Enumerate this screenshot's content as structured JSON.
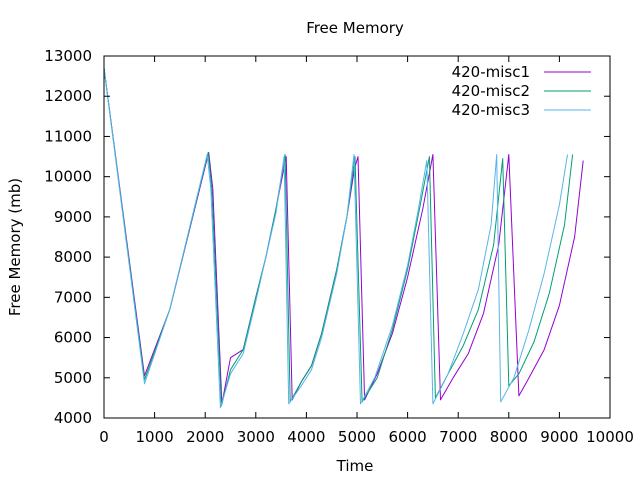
{
  "chart_data": {
    "type": "line",
    "title": "Free Memory",
    "xlabel": "Time",
    "ylabel": "Free Memory (mb)",
    "xlim": [
      0,
      10000
    ],
    "ylim": [
      4000,
      13000
    ],
    "xticks": [
      "0",
      "1000",
      "2000",
      "3000",
      "4000",
      "5000",
      "6000",
      "7000",
      "8000",
      "9000",
      "10000"
    ],
    "yticks": [
      "4000",
      "5000",
      "6000",
      "7000",
      "8000",
      "9000",
      "10000",
      "11000",
      "12000",
      "13000"
    ],
    "grid": false,
    "legend_position": "top-right",
    "series": [
      {
        "name": "420-misc1",
        "color": "#9400d3",
        "points": [
          [
            0,
            12700
          ],
          [
            800,
            5050
          ],
          [
            1300,
            6700
          ],
          [
            2070,
            10600
          ],
          [
            2150,
            9700
          ],
          [
            2330,
            4350
          ],
          [
            2500,
            5500
          ],
          [
            2750,
            5700
          ],
          [
            3000,
            7000
          ],
          [
            3200,
            8000
          ],
          [
            3400,
            9200
          ],
          [
            3600,
            10500
          ],
          [
            3720,
            4450
          ],
          [
            3900,
            4900
          ],
          [
            4100,
            5300
          ],
          [
            4300,
            6100
          ],
          [
            4600,
            7700
          ],
          [
            4800,
            9000
          ],
          [
            4950,
            10200
          ],
          [
            5020,
            10500
          ],
          [
            5150,
            4450
          ],
          [
            5400,
            5100
          ],
          [
            5700,
            6100
          ],
          [
            6000,
            7500
          ],
          [
            6300,
            9200
          ],
          [
            6500,
            10550
          ],
          [
            6650,
            4450
          ],
          [
            6900,
            5000
          ],
          [
            7200,
            5600
          ],
          [
            7500,
            6600
          ],
          [
            7800,
            8300
          ],
          [
            8000,
            10550
          ],
          [
            8200,
            4550
          ],
          [
            8400,
            5000
          ],
          [
            8700,
            5700
          ],
          [
            9000,
            6800
          ],
          [
            9300,
            8500
          ],
          [
            9470,
            10400
          ]
        ]
      },
      {
        "name": "420-misc2",
        "color": "#009e73",
        "points": [
          [
            0,
            12700
          ],
          [
            800,
            4950
          ],
          [
            1300,
            6700
          ],
          [
            2060,
            10600
          ],
          [
            2130,
            9700
          ],
          [
            2320,
            4300
          ],
          [
            2500,
            5200
          ],
          [
            2750,
            5700
          ],
          [
            3000,
            7000
          ],
          [
            3200,
            8000
          ],
          [
            3400,
            9200
          ],
          [
            3580,
            10550
          ],
          [
            3680,
            4400
          ],
          [
            3900,
            4900
          ],
          [
            4100,
            5300
          ],
          [
            4300,
            6100
          ],
          [
            4600,
            7700
          ],
          [
            4800,
            9000
          ],
          [
            4960,
            10500
          ],
          [
            5100,
            4400
          ],
          [
            5400,
            5000
          ],
          [
            5700,
            6200
          ],
          [
            6000,
            7700
          ],
          [
            6250,
            9300
          ],
          [
            6430,
            10500
          ],
          [
            6550,
            4500
          ],
          [
            6800,
            5100
          ],
          [
            7100,
            5800
          ],
          [
            7400,
            6700
          ],
          [
            7700,
            8300
          ],
          [
            7880,
            10450
          ],
          [
            8000,
            4800
          ],
          [
            8200,
            5100
          ],
          [
            8500,
            5900
          ],
          [
            8800,
            7100
          ],
          [
            9100,
            8800
          ],
          [
            9260,
            10550
          ]
        ]
      },
      {
        "name": "420-misc3",
        "color": "#56b4e9",
        "points": [
          [
            0,
            12700
          ],
          [
            800,
            4850
          ],
          [
            1300,
            6700
          ],
          [
            2040,
            10550
          ],
          [
            2110,
            9700
          ],
          [
            2300,
            4250
          ],
          [
            2500,
            5100
          ],
          [
            2750,
            5600
          ],
          [
            3000,
            6900
          ],
          [
            3200,
            8000
          ],
          [
            3400,
            9100
          ],
          [
            3560,
            10500
          ],
          [
            3650,
            4350
          ],
          [
            3900,
            4800
          ],
          [
            4100,
            5200
          ],
          [
            4300,
            6000
          ],
          [
            4600,
            7600
          ],
          [
            4800,
            9000
          ],
          [
            4940,
            10550
          ],
          [
            5070,
            4350
          ],
          [
            5350,
            5000
          ],
          [
            5700,
            6300
          ],
          [
            6000,
            7800
          ],
          [
            6200,
            9100
          ],
          [
            6380,
            10400
          ],
          [
            6500,
            4350
          ],
          [
            6800,
            5100
          ],
          [
            7100,
            6100
          ],
          [
            7400,
            7200
          ],
          [
            7650,
            8800
          ],
          [
            7760,
            10550
          ],
          [
            7840,
            4400
          ],
          [
            8100,
            5000
          ],
          [
            8400,
            6200
          ],
          [
            8700,
            7600
          ],
          [
            9000,
            9300
          ],
          [
            9160,
            10550
          ]
        ]
      }
    ]
  }
}
